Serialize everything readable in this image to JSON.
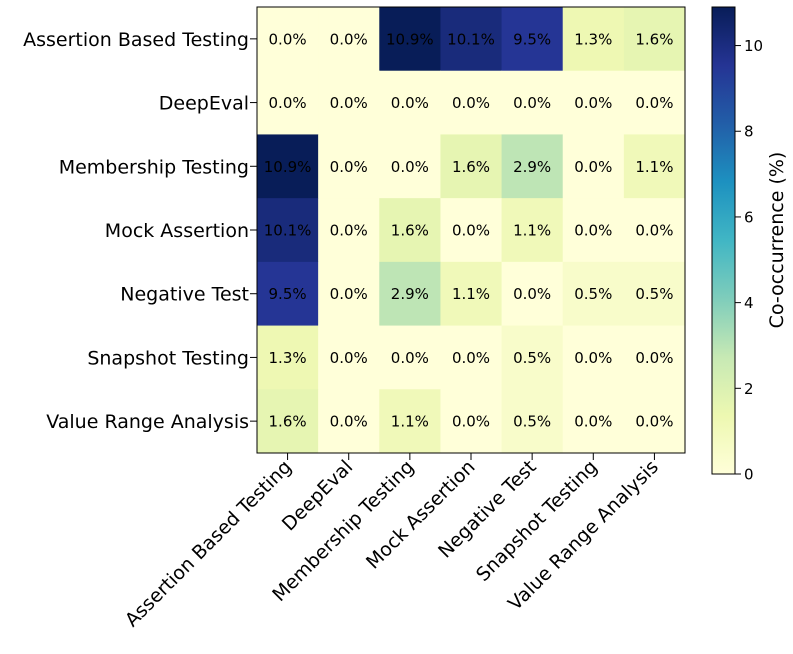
{
  "chart_data": {
    "type": "heatmap",
    "row_labels": [
      "Assertion Based Testing",
      "DeepEval",
      "Membership Testing",
      "Mock Assertion",
      "Negative Test",
      "Snapshot Testing",
      "Value Range Analysis"
    ],
    "col_labels": [
      "Assertion Based Testing",
      "DeepEval",
      "Membership Testing",
      "Mock Assertion",
      "Negative Test",
      "Snapshot Testing",
      "Value Range Analysis"
    ],
    "values": [
      [
        0.0,
        0.0,
        10.9,
        10.1,
        9.5,
        1.3,
        1.6
      ],
      [
        0.0,
        0.0,
        0.0,
        0.0,
        0.0,
        0.0,
        0.0
      ],
      [
        10.9,
        0.0,
        0.0,
        1.6,
        2.9,
        0.0,
        1.1
      ],
      [
        10.1,
        0.0,
        1.6,
        0.0,
        1.1,
        0.0,
        0.0
      ],
      [
        9.5,
        0.0,
        2.9,
        1.1,
        0.0,
        0.5,
        0.5
      ],
      [
        1.3,
        0.0,
        0.0,
        0.0,
        0.5,
        0.0,
        0.0
      ],
      [
        1.6,
        0.0,
        1.1,
        0.0,
        0.5,
        0.0,
        0.0
      ]
    ],
    "cell_labels": [
      [
        "0.0%",
        "0.0%",
        "10.9%",
        "10.1%",
        "9.5%",
        "1.3%",
        "1.6%"
      ],
      [
        "0.0%",
        "0.0%",
        "0.0%",
        "0.0%",
        "0.0%",
        "0.0%",
        "0.0%"
      ],
      [
        "10.9%",
        "0.0%",
        "0.0%",
        "1.6%",
        "2.9%",
        "0.0%",
        "1.1%"
      ],
      [
        "10.1%",
        "0.0%",
        "1.6%",
        "0.0%",
        "1.1%",
        "0.0%",
        "0.0%"
      ],
      [
        "9.5%",
        "0.0%",
        "2.9%",
        "1.1%",
        "0.0%",
        "0.5%",
        "0.5%"
      ],
      [
        "1.3%",
        "0.0%",
        "0.0%",
        "0.0%",
        "0.5%",
        "0.0%",
        "0.0%"
      ],
      [
        "1.6%",
        "0.0%",
        "1.1%",
        "0.0%",
        "0.5%",
        "0.0%",
        "0.0%"
      ]
    ],
    "colorbar": {
      "label": "Co-occurrence (%)",
      "ticks": [
        "0",
        "2",
        "4",
        "6",
        "8",
        "10"
      ],
      "range": [
        0,
        10.9
      ],
      "colormap": "YlGnBu"
    }
  }
}
